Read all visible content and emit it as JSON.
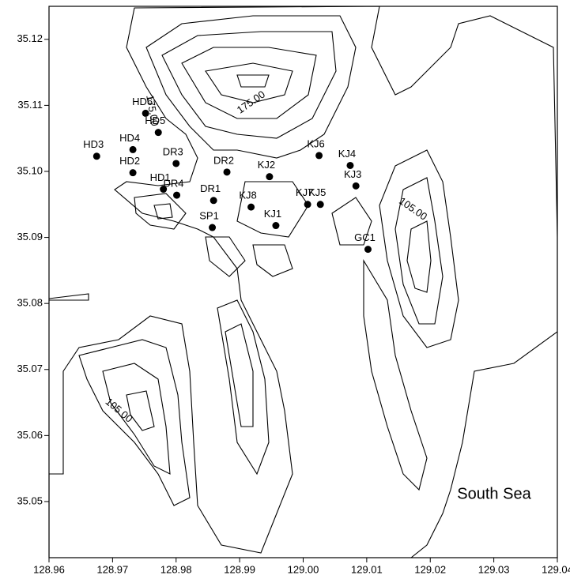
{
  "chart_data": {
    "type": "scatter",
    "xlim": [
      128.96,
      129.04
    ],
    "ylim": [
      35.0415,
      35.125
    ],
    "xticks": [
      128.96,
      128.97,
      128.98,
      128.99,
      {
        "value": 129,
        "label": "129.00"
      },
      129.01,
      129.02,
      129.03,
      129.04
    ],
    "yticks": [
      35.05,
      35.06,
      35.07,
      35.08,
      35.09,
      {
        "value": 35.1,
        "label": "35.10"
      },
      35.11,
      35.12
    ],
    "color": "#000000",
    "point_labels": [
      "HD6",
      "HD5",
      "HD4",
      "HD3",
      "HD2",
      "DR3",
      "HD1",
      "DR4",
      "DR2",
      "DR1",
      "SP1",
      "KJ8",
      "KJ2",
      "KJ1",
      "KJ6",
      "KJ4",
      "KJ3",
      "KJ7",
      "KJ5",
      "GC1"
    ],
    "x": [
      128.9752,
      128.9772,
      128.9732,
      128.9675,
      128.9732,
      128.98,
      128.978,
      128.9801,
      128.988,
      128.9859,
      128.9857,
      128.9918,
      128.9947,
      128.9957,
      129.0025,
      129.0074,
      129.0083,
      129.0007,
      129.0027,
      129.0102
    ],
    "values": [
      35.1088,
      35.1059,
      35.1033,
      35.1023,
      35.0998,
      35.1012,
      35.0973,
      35.0964,
      35.0999,
      35.0956,
      35.0915,
      35.0946,
      35.0992,
      35.0918,
      35.1024,
      35.1009,
      35.0978,
      35.095,
      35.095,
      35.0882
    ],
    "annotations": [
      "175.00",
      "175.00",
      "105.00",
      "105.00",
      "South Sea"
    ]
  }
}
